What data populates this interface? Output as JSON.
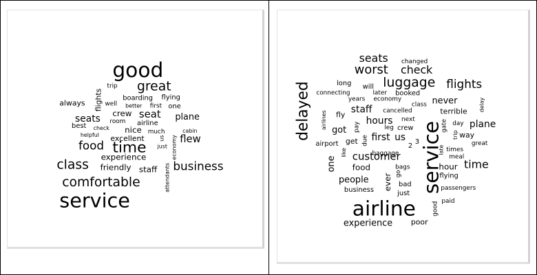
{
  "colors": {
    "text": "#000000",
    "border": "#000000"
  },
  "left_cloud": {
    "words": [
      {
        "text": "good",
        "weight": 30
      },
      {
        "text": "great",
        "weight": 19
      },
      {
        "text": "service",
        "weight": 29
      },
      {
        "text": "comfortable",
        "weight": 19
      },
      {
        "text": "class",
        "weight": 19
      },
      {
        "text": "business",
        "weight": 17
      },
      {
        "text": "time",
        "weight": 22
      },
      {
        "text": "food",
        "weight": 17
      },
      {
        "text": "seat",
        "weight": 15
      },
      {
        "text": "seats",
        "weight": 14
      },
      {
        "text": "flew",
        "weight": 15
      },
      {
        "text": "plane",
        "weight": 13
      },
      {
        "text": "experience",
        "weight": 12
      },
      {
        "text": "friendly",
        "weight": 12
      },
      {
        "text": "staff",
        "weight": 12
      },
      {
        "text": "crew",
        "weight": 12
      },
      {
        "text": "nice",
        "weight": 12
      },
      {
        "text": "excellent",
        "weight": 11
      },
      {
        "text": "always",
        "weight": 11
      },
      {
        "text": "flights",
        "weight": 11
      },
      {
        "text": "boarding",
        "weight": 10
      },
      {
        "text": "flying",
        "weight": 10
      },
      {
        "text": "airline",
        "weight": 10
      },
      {
        "text": "best",
        "weight": 10
      },
      {
        "text": "trip",
        "weight": 9
      },
      {
        "text": "well",
        "weight": 9
      },
      {
        "text": "better",
        "weight": 8
      },
      {
        "text": "first",
        "weight": 9
      },
      {
        "text": "one",
        "weight": 10
      },
      {
        "text": "room",
        "weight": 9
      },
      {
        "text": "check",
        "weight": 8
      },
      {
        "text": "helpful",
        "weight": 8
      },
      {
        "text": "much",
        "weight": 9
      },
      {
        "text": "cabin",
        "weight": 8
      },
      {
        "text": "us",
        "weight": 8
      },
      {
        "text": "just",
        "weight": 8
      },
      {
        "text": "economy",
        "weight": 8
      },
      {
        "text": "attendants",
        "weight": 8
      }
    ]
  },
  "right_cloud": {
    "words": [
      {
        "text": "airline",
        "weight": 30
      },
      {
        "text": "service",
        "weight": 30
      },
      {
        "text": "delayed",
        "weight": 22
      },
      {
        "text": "luggage",
        "weight": 19
      },
      {
        "text": "worst",
        "weight": 18
      },
      {
        "text": "check",
        "weight": 16
      },
      {
        "text": "seats",
        "weight": 16
      },
      {
        "text": "flights",
        "weight": 17
      },
      {
        "text": "customer",
        "weight": 15
      },
      {
        "text": "time",
        "weight": 16
      },
      {
        "text": "plane",
        "weight": 14
      },
      {
        "text": "hours",
        "weight": 14
      },
      {
        "text": "first",
        "weight": 14
      },
      {
        "text": "us",
        "weight": 14
      },
      {
        "text": "staff",
        "weight": 14
      },
      {
        "text": "got",
        "weight": 13
      },
      {
        "text": "people",
        "weight": 13
      },
      {
        "text": "experience",
        "weight": 13
      },
      {
        "text": "never",
        "weight": 13
      },
      {
        "text": "one",
        "weight": 13
      },
      {
        "text": "food",
        "weight": 12
      },
      {
        "text": "ever",
        "weight": 12
      },
      {
        "text": "hour",
        "weight": 12
      },
      {
        "text": "terrible",
        "weight": 11
      },
      {
        "text": "way",
        "weight": 11
      },
      {
        "text": "fly",
        "weight": 11
      },
      {
        "text": "get",
        "weight": 11
      },
      {
        "text": "poor",
        "weight": 11
      },
      {
        "text": "business",
        "weight": 10
      },
      {
        "text": "bad",
        "weight": 10
      },
      {
        "text": "just",
        "weight": 10
      },
      {
        "text": "flying",
        "weight": 10
      },
      {
        "text": "passengers",
        "weight": 9
      },
      {
        "text": "long",
        "weight": 10
      },
      {
        "text": "will",
        "weight": 10
      },
      {
        "text": "booked",
        "weight": 10
      },
      {
        "text": "later",
        "weight": 9
      },
      {
        "text": "changed",
        "weight": 9
      },
      {
        "text": "connecting",
        "weight": 9
      },
      {
        "text": "years",
        "weight": 9
      },
      {
        "text": "economy",
        "weight": 9
      },
      {
        "text": "class",
        "weight": 9
      },
      {
        "text": "cancelled",
        "weight": 9
      },
      {
        "text": "next",
        "weight": 9
      },
      {
        "text": "leg",
        "weight": 9
      },
      {
        "text": "crew",
        "weight": 10
      },
      {
        "text": "day",
        "weight": 9
      },
      {
        "text": "gate",
        "weight": 9
      },
      {
        "text": "delay",
        "weight": 8
      },
      {
        "text": "airport",
        "weight": 10
      },
      {
        "text": "baggage",
        "weight": 9
      },
      {
        "text": "2",
        "weight": 10
      },
      {
        "text": "3",
        "weight": 10
      },
      {
        "text": "bags",
        "weight": 9
      },
      {
        "text": "times",
        "weight": 9
      },
      {
        "text": "meal",
        "weight": 9
      },
      {
        "text": "great",
        "weight": 9
      },
      {
        "text": "paid",
        "weight": 9
      },
      {
        "text": "good",
        "weight": 9
      },
      {
        "text": "go",
        "weight": 9
      },
      {
        "text": "late",
        "weight": 8
      },
      {
        "text": "trip",
        "weight": 8
      },
      {
        "text": "like",
        "weight": 8
      },
      {
        "text": "due",
        "weight": 9
      },
      {
        "text": "pay",
        "weight": 9
      },
      {
        "text": "airlines",
        "weight": 8
      }
    ]
  }
}
